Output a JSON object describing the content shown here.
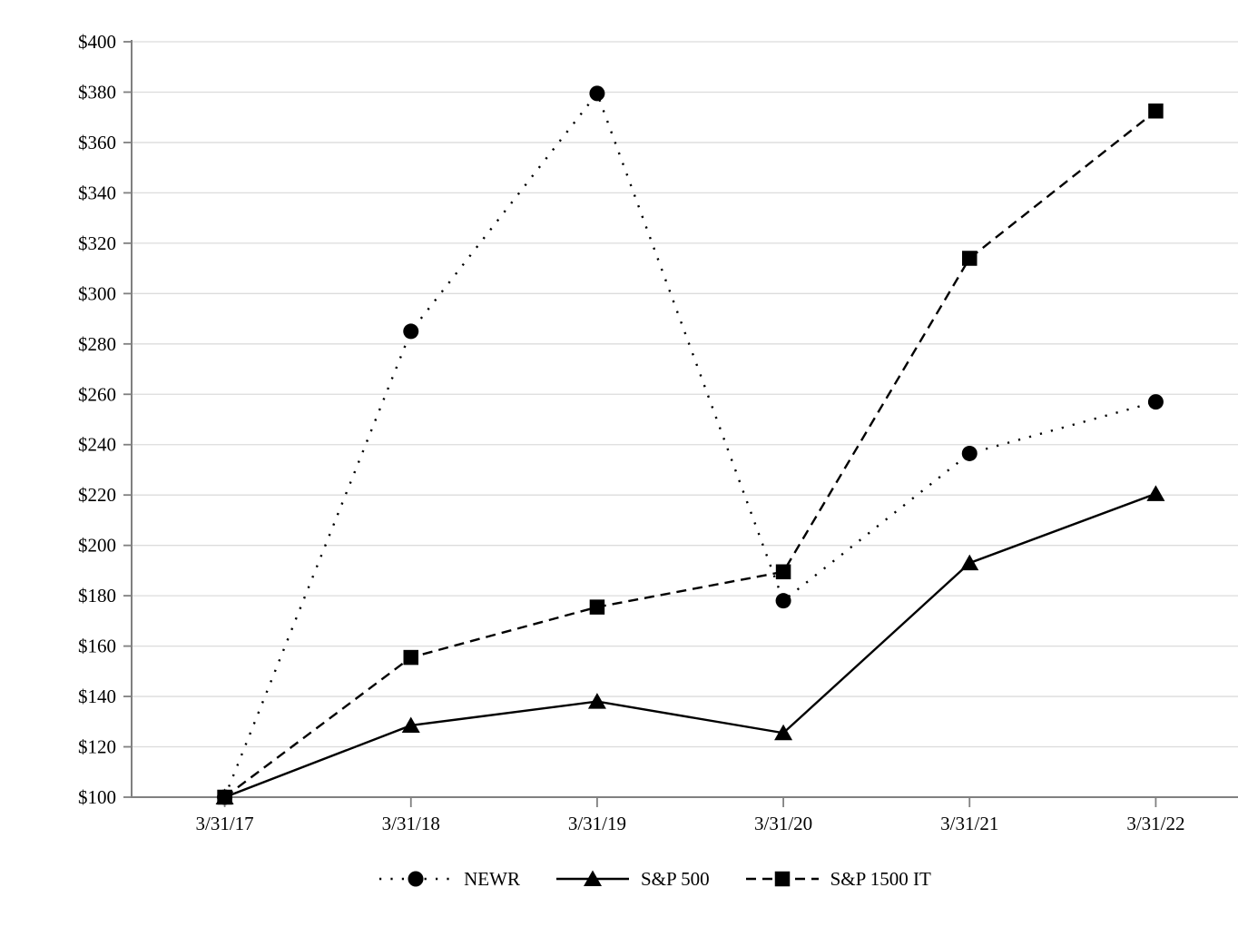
{
  "chart_data": {
    "type": "line",
    "title": "",
    "x_categories": [
      "3/31/17",
      "3/31/18",
      "3/31/19",
      "3/31/20",
      "3/31/21",
      "3/31/22"
    ],
    "y_axis": {
      "min": 100,
      "max": 400,
      "step": 20,
      "tick_prefix": "$",
      "tick_labels": [
        "$100",
        "$120",
        "$140",
        "$160",
        "$180",
        "$200",
        "$220",
        "$240",
        "$260",
        "$280",
        "$300",
        "$320",
        "$340",
        "$360",
        "$380",
        "$400"
      ]
    },
    "series": [
      {
        "name": "NEWR",
        "marker": "circle",
        "line_style": "dotted",
        "color": "#000000",
        "values": [
          100,
          285,
          379.5,
          178,
          236.5,
          257
        ]
      },
      {
        "name": "S&P 500",
        "marker": "triangle",
        "line_style": "solid",
        "color": "#000000",
        "values": [
          100,
          128.5,
          138,
          125.5,
          193,
          220.5
        ]
      },
      {
        "name": "S&P 1500 IT",
        "marker": "square",
        "line_style": "dashed",
        "color": "#000000",
        "values": [
          100,
          155.5,
          175.5,
          189.5,
          314,
          372.5
        ]
      }
    ],
    "legend": {
      "position": "bottom",
      "entries": [
        "NEWR",
        "S&P 500",
        "S&P 1500 IT"
      ]
    },
    "grid": true,
    "colors": {
      "series": "#000000",
      "gridline": "#dcdcdc",
      "axis": "#808080",
      "background": "#ffffff"
    }
  }
}
